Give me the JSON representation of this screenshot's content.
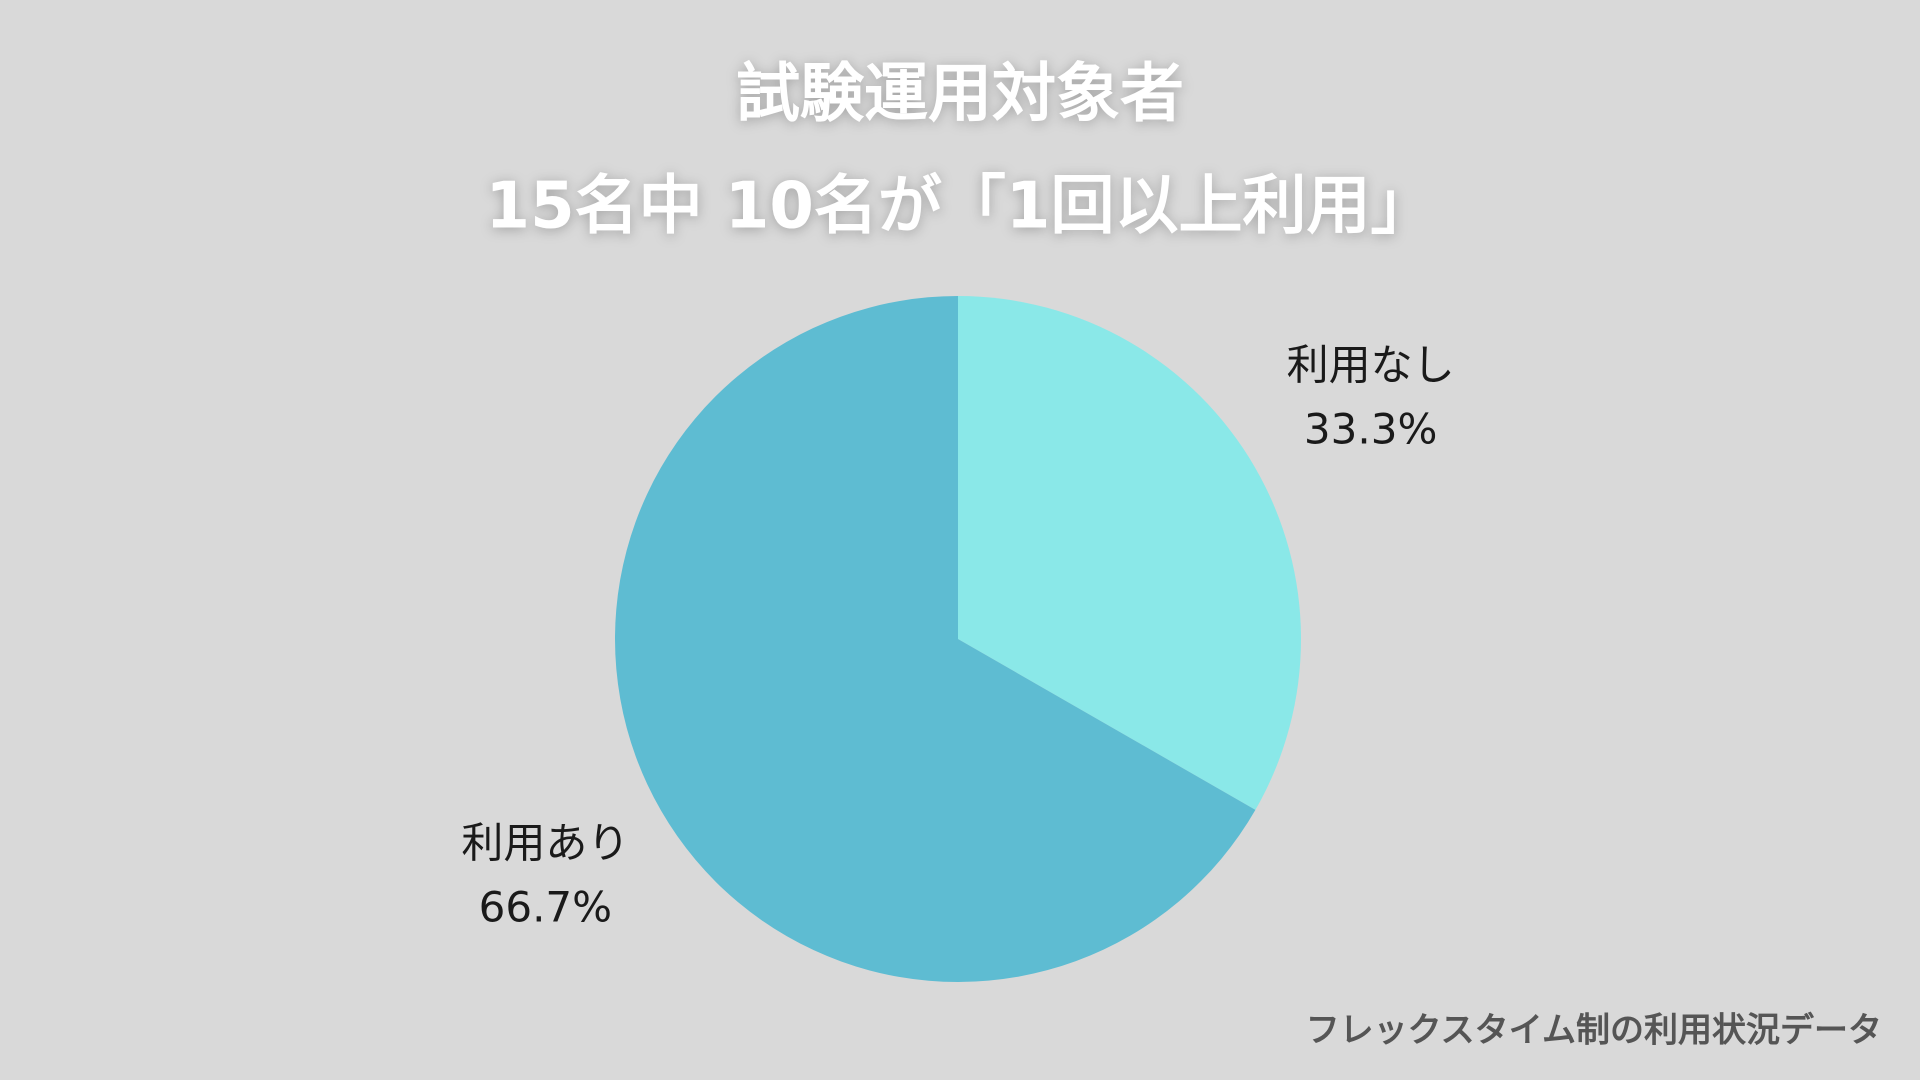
{
  "chart_data": {
    "type": "pie",
    "title": [
      "試験運用対象者",
      "15名中 10名が「1回以上利用」"
    ],
    "categories": [
      "利用なし",
      "利用あり"
    ],
    "values": [
      33.3,
      66.7
    ],
    "value_labels": [
      "33.3%",
      "66.7%"
    ],
    "colors": [
      "#8ae8e8",
      "#5ebcd2"
    ],
    "caption": "フレックスタイム制の利用状況データ"
  }
}
